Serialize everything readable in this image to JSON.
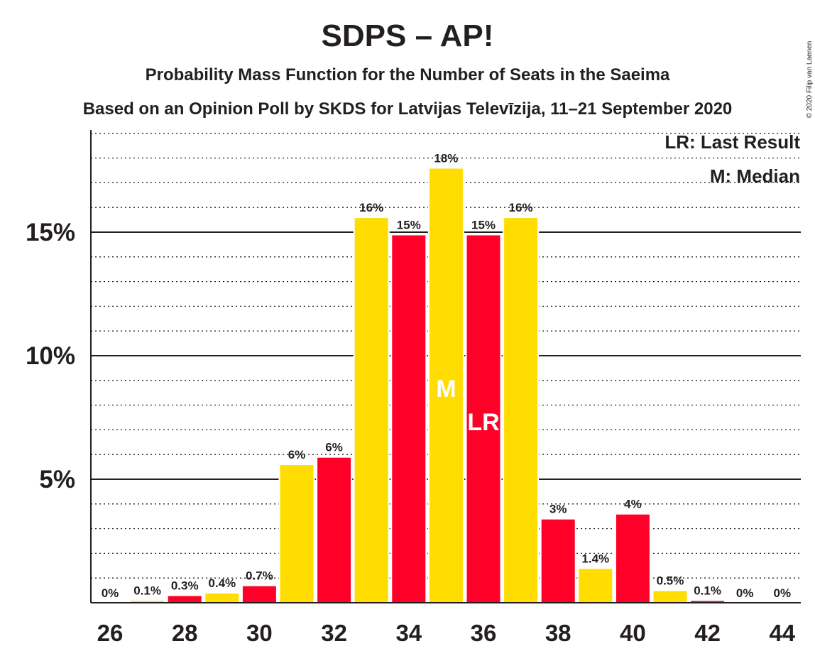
{
  "chart_data": {
    "type": "bar",
    "title": "SDPS – AP!",
    "subtitle": "Probability Mass Function for the Number of Seats in the Saeima",
    "subtitle2": "Based on an Opinion Poll by SKDS for Latvijas Televīzija, 11–21 September 2020",
    "copyright": "© 2020 Filip van Laenen",
    "xlabel": "",
    "ylabel": "",
    "ylim": [
      0,
      19
    ],
    "x": [
      26,
      27,
      28,
      29,
      30,
      31,
      32,
      33,
      34,
      35,
      36,
      37,
      38,
      39,
      40,
      41,
      42,
      43,
      44
    ],
    "values": [
      0,
      0.1,
      0.3,
      0.4,
      0.7,
      5.6,
      5.9,
      15.6,
      14.9,
      17.6,
      14.9,
      15.6,
      3.4,
      1.4,
      3.6,
      0.5,
      0.1,
      0,
      0
    ],
    "labels": [
      "0%",
      "0.1%",
      "0.3%",
      "0.4%",
      "0.7%",
      "6%",
      "6%",
      "16%",
      "15%",
      "18%",
      "15%",
      "16%",
      "3%",
      "1.4%",
      "4%",
      "0.5%",
      "0.1%",
      "0%",
      "0%"
    ],
    "x_tick_labels": [
      "26",
      "28",
      "30",
      "32",
      "34",
      "36",
      "38",
      "40",
      "42",
      "44"
    ],
    "y_tick_labels": [
      {
        "value": 5,
        "label": "5%"
      },
      {
        "value": 10,
        "label": "10%"
      },
      {
        "value": 15,
        "label": "15%"
      }
    ],
    "median_seat": 35,
    "median_marker": "M",
    "last_result_seat": 36,
    "last_result_marker": "LR",
    "legend": [
      "LR: Last Result",
      "M: Median"
    ],
    "legend_position": "top-right",
    "colors": {
      "red": "#ff0028",
      "yellow": "#ffdd00",
      "text": "#231f20"
    }
  }
}
